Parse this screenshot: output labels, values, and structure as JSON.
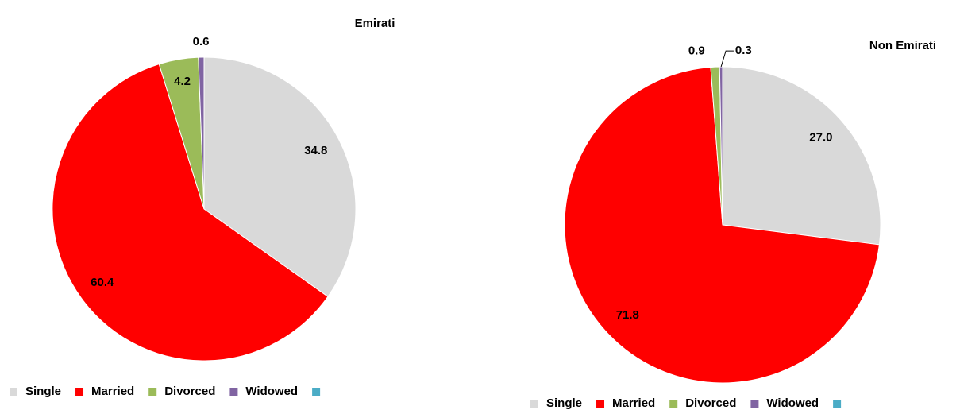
{
  "chart_data": [
    {
      "type": "pie",
      "title": "Emirati",
      "categories": [
        "Single",
        "Married",
        "Divorced",
        "Widowed",
        null
      ],
      "values": [
        34.8,
        60.4,
        4.2,
        0.6,
        null
      ],
      "value_labels": [
        "34.8",
        "60.4",
        "4.2",
        "0.6",
        null
      ],
      "colors": [
        "#d9d9d9",
        "#ff0000",
        "#9bbb59",
        "#8064a2",
        "#4bacc6"
      ],
      "legend": "bottom"
    },
    {
      "type": "pie",
      "title": "Non Emirati",
      "categories": [
        "Single",
        "Married",
        "Divorced",
        "Widowed",
        null
      ],
      "values": [
        27.0,
        71.8,
        0.9,
        0.3,
        null
      ],
      "value_labels": [
        "27.0",
        "71.8",
        "0.9",
        "0.3",
        null
      ],
      "colors": [
        "#d9d9d9",
        "#ff0000",
        "#9bbb59",
        "#8064a2",
        "#4bacc6"
      ],
      "legend": "bottom"
    }
  ]
}
